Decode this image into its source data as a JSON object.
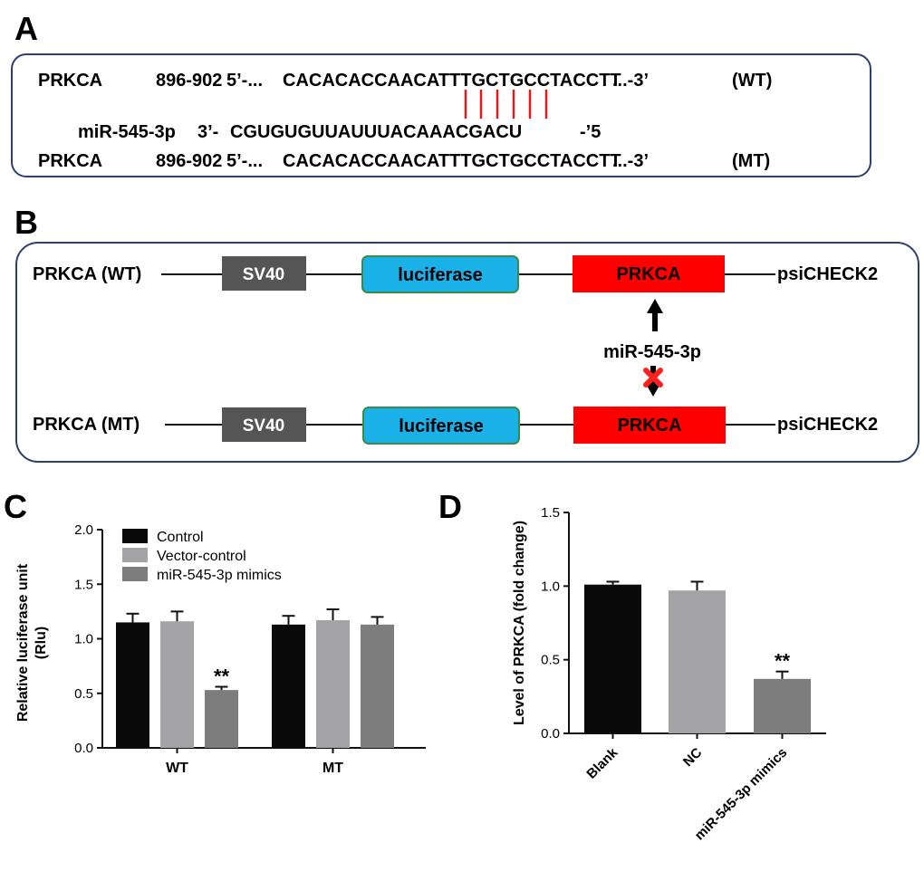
{
  "panels": {
    "a": {
      "letter": "A",
      "wt_line": {
        "gene": "PRKCA",
        "position": "896-902",
        "prefix": "5’-...",
        "sequence": "CACACACCAACATTTGCTGCCTACCTT",
        "suffix": "...-3’",
        "tag": "(WT)"
      },
      "mirna_line": {
        "name": "miR-545-3p",
        "prefix": "3’-",
        "sequence": "CGUGUGUUAUUUACAAACGACU",
        "suffix": "-’5"
      },
      "mt_line": {
        "gene": "PRKCA",
        "position": "896-902",
        "prefix": "5’-...",
        "sequence": "CACACACCAACATTTGCTGCCTACCTT",
        "suffix": "...-3’",
        "tag": "(MT)"
      },
      "pair_line_color": "#e31a1c"
    },
    "b": {
      "letter": "B",
      "wt_label": "PRKCA (WT)",
      "mt_label": "PRKCA (MT)",
      "promoter": "SV40",
      "reporter": "luciferase",
      "target": "PRKCA",
      "vector": "psiCHECK2",
      "mirna": "miR-545-3p",
      "colors": {
        "promoter": "#555555",
        "reporter": "#1ab0e8",
        "target": "#ff0000",
        "block": "#ff2020"
      }
    },
    "c": {
      "letter": "C",
      "ylabel_line1": "Relative luciferase unit",
      "ylabel_line2": "(Rlu)",
      "significance": "**"
    },
    "d": {
      "letter": "D",
      "ylabel": "Level of PRKCA (fold change)",
      "significance": "**"
    }
  },
  "chart_data": [
    {
      "type": "bar",
      "title": "",
      "xlabel": "",
      "ylabel": "Relative luciferase unit (Rlu)",
      "categories": [
        "WT",
        "MT"
      ],
      "series": [
        {
          "name": "Control",
          "values": [
            1.15,
            1.13
          ],
          "errors": [
            0.08,
            0.08
          ],
          "color": "#0a0a0a"
        },
        {
          "name": "Vector-control",
          "values": [
            1.16,
            1.17
          ],
          "errors": [
            0.09,
            0.1
          ],
          "color": "#a3a3a5"
        },
        {
          "name": "miR-545-3p mimics",
          "values": [
            0.53,
            1.13
          ],
          "errors": [
            0.03,
            0.07
          ],
          "color": "#7d7d7d"
        }
      ],
      "ylim": [
        0,
        2.0
      ],
      "yticks": [
        "0.0",
        "0.5",
        "1.0",
        "1.5",
        "2.0"
      ],
      "legend": "top-left",
      "grid": false,
      "annotations": [
        {
          "category": "WT",
          "series": "miR-545-3p mimics",
          "text": "**"
        }
      ]
    },
    {
      "type": "bar",
      "title": "",
      "xlabel": "",
      "ylabel": "Level of PRKCA (fold change)",
      "categories": [
        "Blank",
        "NC",
        "miR-545-3p mimics"
      ],
      "values": [
        1.01,
        0.97,
        0.37
      ],
      "errors": [
        0.02,
        0.06,
        0.05
      ],
      "colors": [
        "#0a0a0a",
        "#a3a3a5",
        "#7d7d7d"
      ],
      "ylim": [
        0,
        1.5
      ],
      "yticks": [
        "0.0",
        "0.5",
        "1.0",
        "1.5"
      ],
      "grid": false,
      "annotations": [
        {
          "category": "miR-545-3p mimics",
          "text": "**"
        }
      ]
    }
  ]
}
